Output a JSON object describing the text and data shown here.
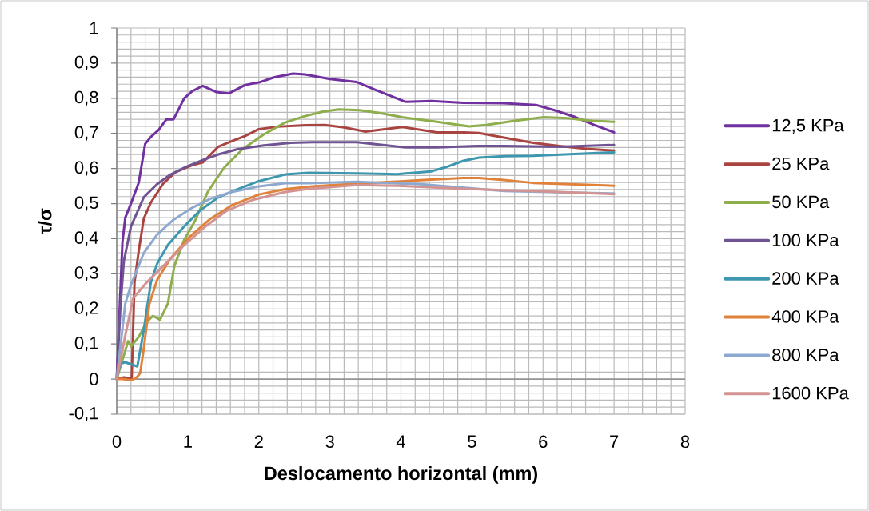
{
  "chart_data": {
    "type": "line",
    "xlabel": "Deslocamento horizontal (mm)",
    "ylabel": "τ/σ",
    "xlim": [
      0,
      8
    ],
    "xticks": [
      0,
      1,
      2,
      3,
      4,
      5,
      6,
      7,
      8
    ],
    "ylim": [
      -0.1,
      1
    ],
    "yticks": [
      {
        "value": -0.1,
        "label": "-0,1"
      },
      0,
      {
        "value": 0.1,
        "label": "0,1"
      },
      {
        "value": 0.2,
        "label": "0,2"
      },
      {
        "value": 0.3,
        "label": "0,3"
      },
      {
        "value": 0.4,
        "label": "0,4"
      },
      {
        "value": 0.5,
        "label": "0,5"
      },
      {
        "value": 0.6,
        "label": "0,6"
      },
      {
        "value": 0.7,
        "label": "0,7"
      },
      {
        "value": 0.8,
        "label": "0,8"
      },
      {
        "value": 0.9,
        "label": "0,9"
      },
      1
    ],
    "grid": true,
    "legend": "right",
    "marker": "none",
    "line_style": "solid",
    "series": [
      {
        "name": "12,5 KPa",
        "color": "#7030a0",
        "x": [
          0,
          0.08,
          0.12,
          0.2,
          0.31,
          0.4,
          0.48,
          0.59,
          0.7,
          0.8,
          0.95,
          1.06,
          1.21,
          1.4,
          1.58,
          1.81,
          2.0,
          2.22,
          2.48,
          2.65,
          3.0,
          3.38,
          3.65,
          4.06,
          4.43,
          4.88,
          5.45,
          5.9,
          6.16,
          6.46,
          6.72,
          7.0
        ],
        "values": [
          0,
          0.39,
          0.46,
          0.5,
          0.56,
          0.67,
          0.69,
          0.71,
          0.74,
          0.74,
          0.8,
          0.82,
          0.835,
          0.818,
          0.814,
          0.838,
          0.845,
          0.86,
          0.87,
          0.868,
          0.855,
          0.846,
          0.823,
          0.79,
          0.792,
          0.787,
          0.786,
          0.781,
          0.766,
          0.746,
          0.724,
          0.703
        ]
      },
      {
        "name": "25 KPa",
        "color": "#a94440",
        "x": [
          0,
          0.1,
          0.21,
          0.25,
          0.31,
          0.38,
          0.48,
          0.65,
          0.83,
          1.06,
          1.21,
          1.43,
          1.62,
          1.81,
          2.0,
          2.26,
          2.65,
          2.93,
          3.2,
          3.5,
          4.02,
          4.51,
          4.88,
          5.1,
          5.45,
          5.86,
          6.23,
          6.61,
          7.0
        ],
        "values": [
          0,
          0.005,
          0.002,
          0.275,
          0.366,
          0.457,
          0.503,
          0.556,
          0.59,
          0.609,
          0.617,
          0.662,
          0.678,
          0.693,
          0.712,
          0.719,
          0.723,
          0.724,
          0.717,
          0.705,
          0.718,
          0.703,
          0.703,
          0.701,
          0.688,
          0.673,
          0.664,
          0.656,
          0.651
        ]
      },
      {
        "name": "50 KPa",
        "color": "#8ead4b",
        "x": [
          0,
          0.16,
          0.2,
          0.31,
          0.42,
          0.51,
          0.61,
          0.72,
          0.81,
          0.95,
          1.1,
          1.28,
          1.51,
          1.77,
          2.07,
          2.37,
          2.63,
          2.9,
          3.12,
          3.42,
          3.7,
          4.02,
          4.51,
          4.96,
          5.2,
          5.6,
          6.01,
          6.35,
          6.68,
          7.0
        ],
        "values": [
          0,
          0.108,
          0.093,
          0.12,
          0.162,
          0.18,
          0.169,
          0.215,
          0.321,
          0.397,
          0.45,
          0.533,
          0.602,
          0.655,
          0.697,
          0.731,
          0.748,
          0.762,
          0.768,
          0.766,
          0.758,
          0.746,
          0.733,
          0.72,
          0.724,
          0.736,
          0.746,
          0.743,
          0.736,
          0.733
        ]
      },
      {
        "name": "100 KPa",
        "color": "#6f5392",
        "x": [
          0,
          0.05,
          0.1,
          0.2,
          0.38,
          0.57,
          0.76,
          0.98,
          1.21,
          1.43,
          1.7,
          2.07,
          2.45,
          2.75,
          3.38,
          4.06,
          4.51,
          5.07,
          5.45,
          6.23,
          7.0
        ],
        "values": [
          0,
          0.2,
          0.336,
          0.435,
          0.518,
          0.556,
          0.583,
          0.605,
          0.624,
          0.64,
          0.655,
          0.666,
          0.673,
          0.675,
          0.675,
          0.66,
          0.66,
          0.664,
          0.664,
          0.662,
          0.667
        ]
      },
      {
        "name": "200 KPa",
        "color": "#3c97af",
        "x": [
          0,
          0.05,
          0.12,
          0.23,
          0.29,
          0.38,
          0.48,
          0.57,
          0.72,
          0.95,
          1.17,
          1.43,
          1.7,
          2.0,
          2.37,
          2.7,
          3.38,
          3.95,
          4.43,
          4.62,
          4.88,
          5.1,
          5.45,
          5.86,
          7.0
        ],
        "values": [
          0,
          0.044,
          0.048,
          0.04,
          0.036,
          0.139,
          0.275,
          0.329,
          0.382,
          0.435,
          0.48,
          0.518,
          0.541,
          0.564,
          0.583,
          0.588,
          0.586,
          0.584,
          0.592,
          0.603,
          0.622,
          0.631,
          0.635,
          0.636,
          0.646
        ]
      },
      {
        "name": "400 KPa",
        "color": "#e0823a",
        "x": [
          0,
          0.08,
          0.2,
          0.27,
          0.33,
          0.38,
          0.46,
          0.57,
          0.76,
          1.02,
          1.32,
          1.62,
          2.0,
          2.37,
          2.75,
          3.2,
          3.76,
          4.32,
          4.88,
          5.1,
          5.45,
          5.86,
          7.0
        ],
        "values": [
          0,
          0,
          -0.003,
          0.002,
          0.017,
          0.086,
          0.215,
          0.283,
          0.344,
          0.404,
          0.457,
          0.495,
          0.526,
          0.541,
          0.549,
          0.555,
          0.561,
          0.567,
          0.573,
          0.573,
          0.567,
          0.559,
          0.551
        ]
      },
      {
        "name": "800 KPa",
        "color": "#8ea9cf",
        "x": [
          0,
          0.12,
          0.2,
          0.38,
          0.57,
          0.8,
          1.06,
          1.32,
          1.62,
          2.0,
          2.37,
          2.7,
          3.38,
          4.32,
          5.45,
          7.0
        ],
        "values": [
          0,
          0.215,
          0.268,
          0.359,
          0.412,
          0.454,
          0.488,
          0.514,
          0.533,
          0.549,
          0.558,
          0.558,
          0.562,
          0.555,
          0.536,
          0.529
        ]
      },
      {
        "name": "1600 KPa",
        "color": "#d39393",
        "x": [
          0,
          0.12,
          0.23,
          0.42,
          0.65,
          0.95,
          1.25,
          1.55,
          1.92,
          2.37,
          2.7,
          3.38,
          3.95,
          4.88,
          5.45,
          5.86,
          7.0
        ],
        "values": [
          0,
          0.124,
          0.23,
          0.275,
          0.321,
          0.382,
          0.435,
          0.48,
          0.511,
          0.533,
          0.542,
          0.553,
          0.551,
          0.542,
          0.538,
          0.536,
          0.527
        ]
      }
    ]
  }
}
